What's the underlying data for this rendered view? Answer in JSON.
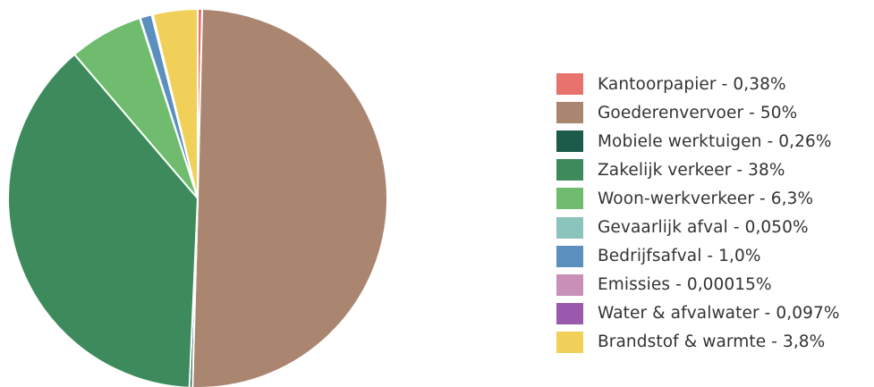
{
  "chart_data": {
    "type": "pie",
    "categories": [
      "Kantoorpapier",
      "Goederenvervoer",
      "Mobiele werktuigen",
      "Zakelijk verkeer",
      "Woon-werkverkeer",
      "Gevaarlijk afval",
      "Bedrijfsafval",
      "Emissies",
      "Water & afvalwater",
      "Brandstof & warmte"
    ],
    "values": [
      0.38,
      50,
      0.26,
      38,
      6.3,
      0.05,
      1.0,
      0.00015,
      0.097,
      3.8
    ],
    "legend": [
      "Kantoorpapier - 0,38%",
      "Goederenvervoer - 50%",
      "Mobiele werktuigen - 0,26%",
      "Zakelijk verkeer - 38%",
      "Woon-werkverkeer - 6,3%",
      "Gevaarlijk afval - 0,050%",
      "Bedrijfsafval - 1,0%",
      "Emissies - 0,00015%",
      "Water & afvalwater - 0,097%",
      "Brandstof & warmte - 3,8%"
    ],
    "colors": [
      "#e8726c",
      "#aa8670",
      "#1c5a4a",
      "#3d8b5c",
      "#6fbc6e",
      "#8bc3bd",
      "#5b8fbe",
      "#c890b8",
      "#9a5aae",
      "#f0d058"
    ],
    "start_angle": "top",
    "direction": "clockwise",
    "slice_border_color": "#ffffff",
    "legend_position": "right"
  }
}
